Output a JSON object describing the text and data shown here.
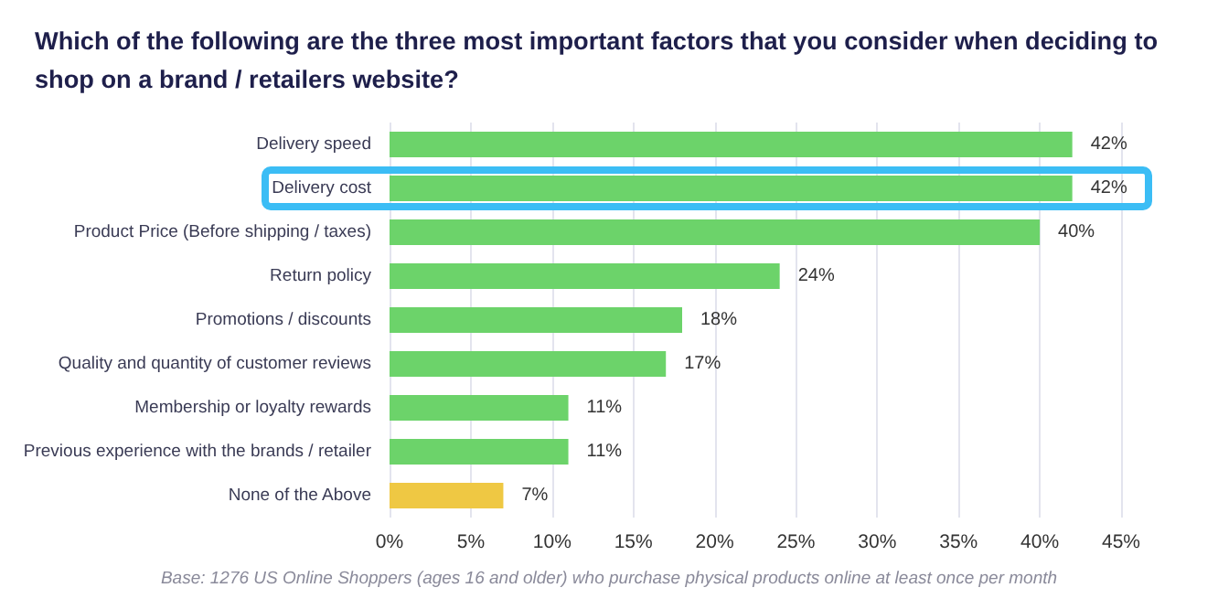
{
  "chart_data": {
    "type": "bar",
    "orientation": "horizontal",
    "title": "Which of the following are the three most important factors that you consider when deciding to shop on a brand / retailers website?",
    "categories": [
      "Delivery speed",
      "Delivery cost",
      "Product Price (Before shipping / taxes)",
      "Return policy",
      "Promotions / discounts",
      "Quality and quantity of customer reviews",
      "Membership or loyalty rewards",
      "Previous experience with the brands / retailer",
      "None of the Above"
    ],
    "values": [
      42,
      42,
      40,
      24,
      18,
      17,
      11,
      11,
      7
    ],
    "value_labels": [
      "42%",
      "42%",
      "40%",
      "24%",
      "18%",
      "17%",
      "11%",
      "11%",
      "7%"
    ],
    "colors": [
      "#6cd36a",
      "#6cd36a",
      "#6cd36a",
      "#6cd36a",
      "#6cd36a",
      "#6cd36a",
      "#6cd36a",
      "#6cd36a",
      "#efc843"
    ],
    "xlim": [
      0,
      45
    ],
    "xticks": [
      {
        "value": 0,
        "label": "0%"
      },
      {
        "value": 5,
        "label": "5%"
      },
      {
        "value": 10,
        "label": "10%"
      },
      {
        "value": 15,
        "label": "15%"
      },
      {
        "value": 20,
        "label": "20%"
      },
      {
        "value": 25,
        "label": "25%"
      },
      {
        "value": 30,
        "label": "30%"
      },
      {
        "value": 35,
        "label": "35%"
      },
      {
        "value": 40,
        "label": "40%"
      },
      {
        "value": 45,
        "label": "45%"
      }
    ],
    "grid": "x",
    "annotations": [
      "Base:  1276 US Online Shoppers (ages 16 and older) who purchase physical products online at least once per month"
    ]
  }
}
